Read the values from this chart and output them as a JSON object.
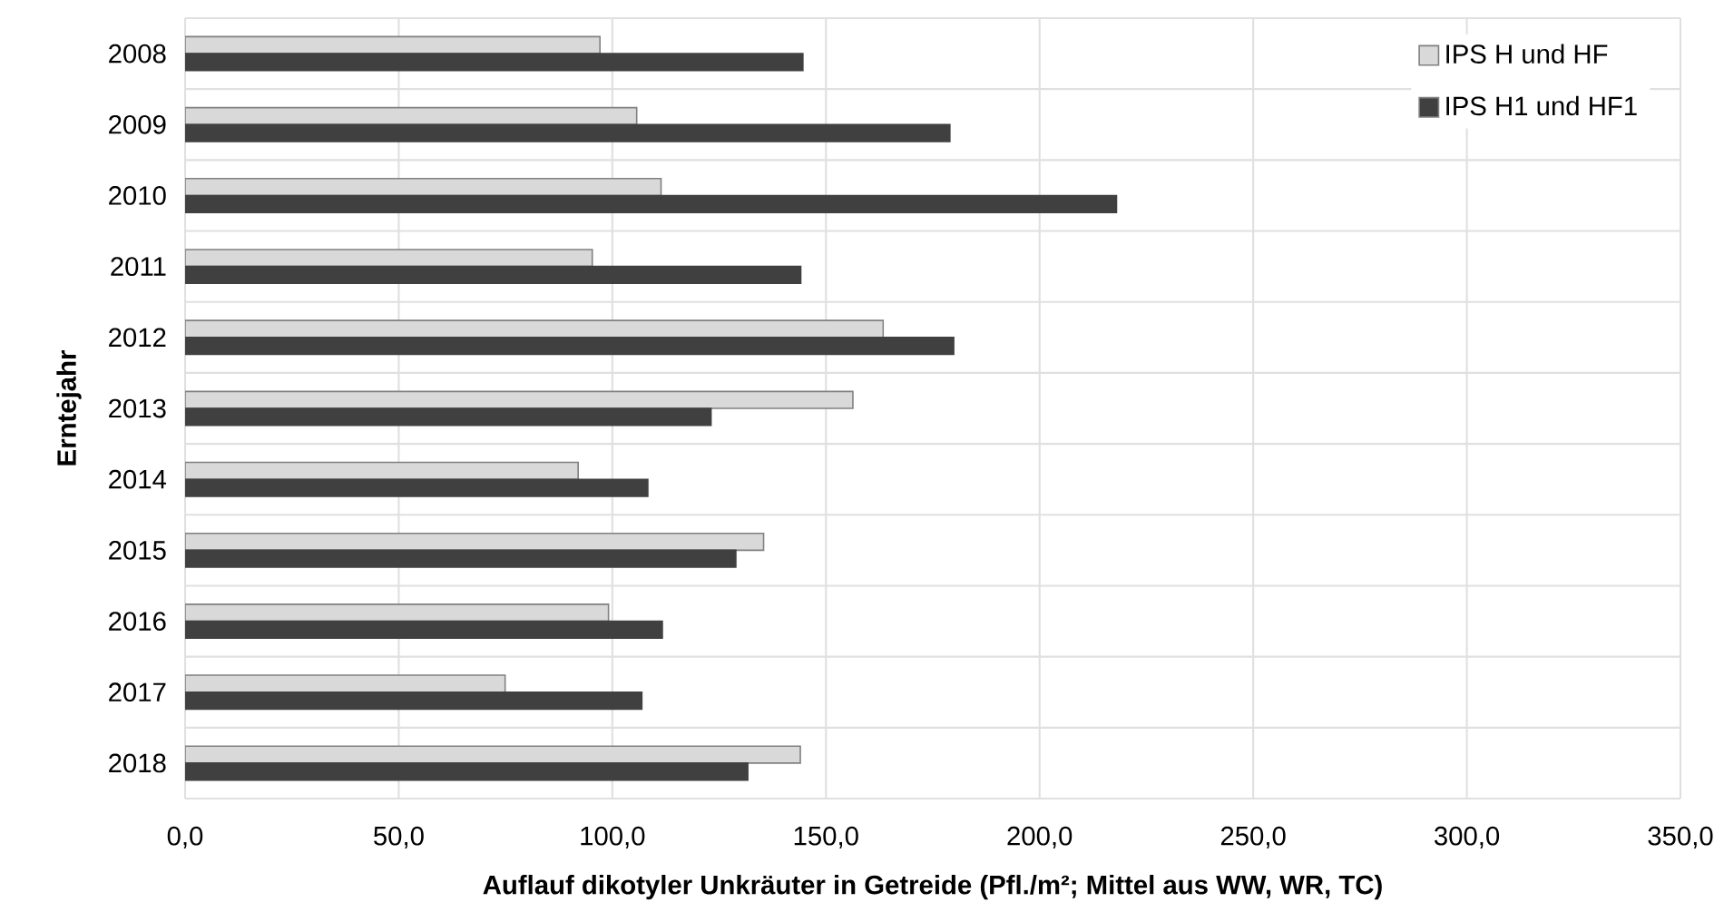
{
  "chart_data": {
    "type": "bar",
    "orientation": "horizontal",
    "xlabel": "Auflauf dikotyler Unkräuter in Getreide (Pfl./m²; Mittel aus WW, WR, TC)",
    "ylabel": "Erntejahr",
    "categories": [
      "2008",
      "2009",
      "2010",
      "2011",
      "2012",
      "2013",
      "2014",
      "2015",
      "2016",
      "2017",
      "2018"
    ],
    "series": [
      {
        "name": "IPS H und HF",
        "color": "#d9d9d9",
        "values": [
          97.1,
          105.7,
          111.4,
          95.3,
          163.4,
          156.3,
          92.0,
          135.4,
          99.1,
          74.9,
          144.0
        ]
      },
      {
        "name": "IPS H1 und HF1",
        "color": "#404040",
        "values": [
          144.6,
          179.0,
          218.0,
          144.1,
          179.9,
          123.1,
          108.3,
          128.9,
          111.7,
          106.9,
          131.7
        ]
      }
    ],
    "xlim": [
      0,
      350
    ],
    "xticks": [
      {
        "value": 0,
        "label": "0,0"
      },
      {
        "value": 50,
        "label": "50,0"
      },
      {
        "value": 100,
        "label": "100,0"
      },
      {
        "value": 150,
        "label": "150,0"
      },
      {
        "value": 200,
        "label": "200,0"
      },
      {
        "value": 250,
        "label": "250,0"
      },
      {
        "value": 300,
        "label": "300,0"
      },
      {
        "value": 350,
        "label": "350,0"
      }
    ],
    "grid": true,
    "legend": "top right"
  }
}
